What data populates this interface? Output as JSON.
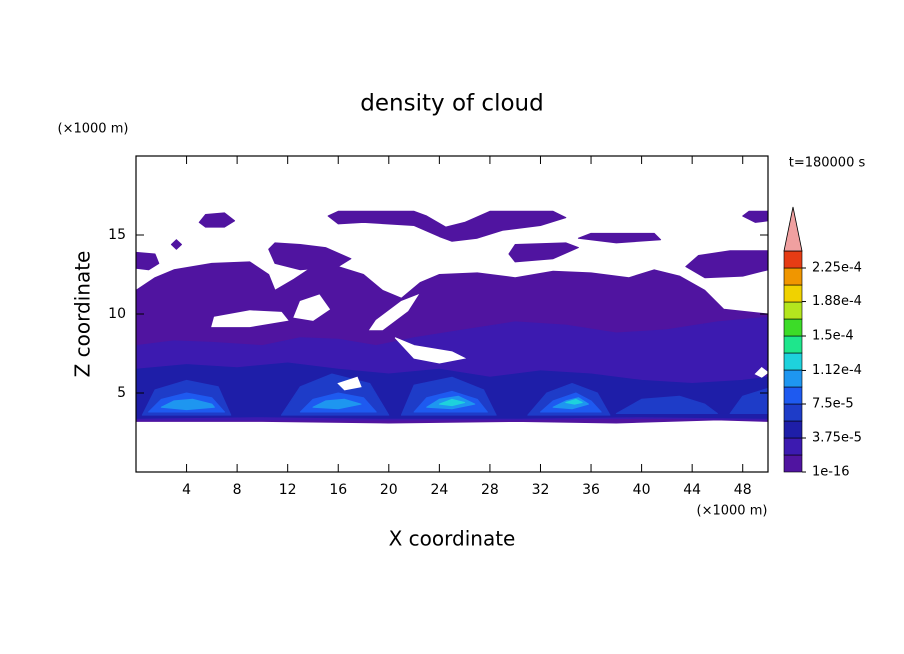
{
  "chart_data": {
    "type": "contour",
    "title": "density of cloud",
    "xlabel": "X coordinate",
    "ylabel": "Z coordinate",
    "x_unit": "(×1000 m)",
    "y_unit": "(×1000 m)",
    "annotation": "t=180000 s",
    "xlim": [
      0,
      50
    ],
    "ylim": [
      0,
      20
    ],
    "xticks": [
      4,
      8,
      12,
      16,
      20,
      24,
      28,
      32,
      36,
      40,
      44,
      48
    ],
    "yticks": [
      5,
      10,
      15
    ],
    "colorbar": {
      "clim": [
        1e-16,
        0.00024375
      ],
      "colors": [
        "#5014a0",
        "#3c1ab0",
        "#1e1ea8",
        "#1e3cc8",
        "#1e5af0",
        "#1e96f0",
        "#1ed2dc",
        "#1ee68c",
        "#3cdc28",
        "#b4e61e",
        "#f0d200",
        "#f09600",
        "#e63c14"
      ],
      "extend_color": "#f0a0a0",
      "ticks": [
        {
          "value": 1e-16,
          "label": "1e-16"
        },
        {
          "value": 3.75e-05,
          "label": "3.75e-5"
        },
        {
          "value": 7.5e-05,
          "label": "7.5e-5"
        },
        {
          "value": 0.000112,
          "label": "1.12e-4"
        },
        {
          "value": 0.00015,
          "label": "1.5e-4"
        },
        {
          "value": 0.000188,
          "label": "1.88e-4"
        },
        {
          "value": 0.000225,
          "label": "2.25e-4"
        }
      ]
    },
    "regions": [
      {
        "level": 1e-16,
        "points": [
          [
            0,
            3.2
          ],
          [
            0,
            11.5
          ],
          [
            1.5,
            12.3
          ],
          [
            3,
            12.8
          ],
          [
            6,
            13.2
          ],
          [
            9,
            13.3
          ],
          [
            10.5,
            12.5
          ],
          [
            11,
            11.5
          ],
          [
            12.5,
            12.2
          ],
          [
            14,
            13
          ],
          [
            16,
            13
          ],
          [
            18,
            12.5
          ],
          [
            19.5,
            11.5
          ],
          [
            21,
            11
          ],
          [
            22.5,
            12
          ],
          [
            24,
            12.5
          ],
          [
            27,
            12.6
          ],
          [
            30,
            12.3
          ],
          [
            33,
            12.7
          ],
          [
            36,
            12.6
          ],
          [
            39,
            12.3
          ],
          [
            41,
            12.8
          ],
          [
            43,
            12.4
          ],
          [
            45,
            11.5
          ],
          [
            46.5,
            10.3
          ],
          [
            50,
            10
          ],
          [
            50,
            3.2
          ],
          [
            46,
            3.3
          ],
          [
            38,
            3.1
          ],
          [
            30,
            3.2
          ],
          [
            20,
            3.1
          ],
          [
            10,
            3.2
          ]
        ]
      },
      {
        "level": 1e-16,
        "points": [
          [
            5,
            15.8
          ],
          [
            5.5,
            16.3
          ],
          [
            7,
            16.4
          ],
          [
            7.8,
            15.9
          ],
          [
            7,
            15.5
          ],
          [
            5.5,
            15.5
          ]
        ]
      },
      {
        "level": 1e-16,
        "points": [
          [
            15.2,
            16.2
          ],
          [
            16,
            16.5
          ],
          [
            22,
            16.5
          ],
          [
            23,
            16.2
          ],
          [
            24.5,
            15.5
          ],
          [
            26,
            15.8
          ],
          [
            28,
            16.5
          ],
          [
            33,
            16.5
          ],
          [
            34,
            16.1
          ],
          [
            32,
            15.6
          ],
          [
            29,
            15.3
          ],
          [
            27,
            14.8
          ],
          [
            25,
            14.6
          ],
          [
            24,
            14.9
          ],
          [
            22,
            15.6
          ],
          [
            18,
            15.8
          ],
          [
            16,
            15.7
          ]
        ]
      },
      {
        "level": 1e-16,
        "points": [
          [
            10.5,
            14.1
          ],
          [
            11,
            14.5
          ],
          [
            13,
            14.4
          ],
          [
            15,
            14.2
          ],
          [
            17,
            13.5
          ],
          [
            16,
            13
          ],
          [
            13,
            12.8
          ],
          [
            11,
            13.2
          ]
        ]
      },
      {
        "level": 1e-16,
        "points": [
          [
            29.5,
            13.8
          ],
          [
            30,
            14.4
          ],
          [
            34,
            14.5
          ],
          [
            35,
            14.2
          ],
          [
            33,
            13.5
          ],
          [
            30,
            13.3
          ]
        ]
      },
      {
        "level": 1e-16,
        "points": [
          [
            35,
            14.8
          ],
          [
            36,
            15.1
          ],
          [
            41,
            15.1
          ],
          [
            41.5,
            14.7
          ],
          [
            38,
            14.5
          ]
        ]
      },
      {
        "level": 1e-16,
        "points": [
          [
            43.5,
            13
          ],
          [
            44.5,
            13.7
          ],
          [
            47,
            14
          ],
          [
            50,
            14
          ],
          [
            50,
            12.8
          ],
          [
            48,
            12.4
          ],
          [
            45,
            12.3
          ]
        ]
      },
      {
        "level": 1e-16,
        "points": [
          [
            48,
            16.2
          ],
          [
            48.5,
            16.5
          ],
          [
            50,
            16.5
          ],
          [
            50,
            15.9
          ],
          [
            49,
            15.8
          ]
        ]
      },
      {
        "level": 1e-16,
        "points": [
          [
            0,
            12.9
          ],
          [
            0,
            13.9
          ],
          [
            1.5,
            13.8
          ],
          [
            1.8,
            13.2
          ],
          [
            1,
            12.8
          ]
        ]
      },
      {
        "level": 1e-16,
        "points": [
          [
            2.8,
            14.4
          ],
          [
            3.2,
            14.7
          ],
          [
            3.6,
            14.4
          ],
          [
            3.2,
            14.1
          ]
        ]
      },
      {
        "level": 2e-05,
        "points": [
          [
            0,
            3.3
          ],
          [
            0,
            8
          ],
          [
            3,
            8.3
          ],
          [
            6,
            8.2
          ],
          [
            10,
            8
          ],
          [
            13,
            8.5
          ],
          [
            16,
            8.4
          ],
          [
            19,
            8
          ],
          [
            22,
            8.5
          ],
          [
            26,
            9
          ],
          [
            30,
            9.5
          ],
          [
            34,
            9.3
          ],
          [
            38,
            8.8
          ],
          [
            42,
            9
          ],
          [
            46,
            9.5
          ],
          [
            50,
            9.8
          ],
          [
            50,
            3.3
          ],
          [
            40,
            3.4
          ],
          [
            30,
            3.3
          ],
          [
            20,
            3.3
          ],
          [
            10,
            3.3
          ]
        ]
      },
      {
        "level": 4e-05,
        "points": [
          [
            0,
            3.4
          ],
          [
            0,
            6.5
          ],
          [
            4,
            6.8
          ],
          [
            8,
            6.6
          ],
          [
            12,
            6.9
          ],
          [
            16,
            6.5
          ],
          [
            20,
            6.2
          ],
          [
            24,
            6.5
          ],
          [
            28,
            6
          ],
          [
            32,
            6.4
          ],
          [
            36,
            6.2
          ],
          [
            40,
            5.8
          ],
          [
            44,
            5.6
          ],
          [
            48,
            5.8
          ],
          [
            50,
            6
          ],
          [
            50,
            3.4
          ],
          [
            40,
            3.5
          ],
          [
            30,
            3.4
          ],
          [
            20,
            3.4
          ],
          [
            10,
            3.5
          ]
        ]
      },
      {
        "level": 6e-05,
        "points": [
          [
            0.5,
            3.6
          ],
          [
            1.5,
            5.2
          ],
          [
            4,
            5.8
          ],
          [
            6.5,
            5.4
          ],
          [
            7.5,
            3.6
          ]
        ]
      },
      {
        "level": 6e-05,
        "points": [
          [
            11.5,
            3.6
          ],
          [
            13,
            5.4
          ],
          [
            15.5,
            6.2
          ],
          [
            18.5,
            5.6
          ],
          [
            20,
            3.6
          ]
        ]
      },
      {
        "level": 6e-05,
        "points": [
          [
            21,
            3.6
          ],
          [
            22,
            5.5
          ],
          [
            25,
            6
          ],
          [
            27.5,
            5.2
          ],
          [
            28.5,
            3.6
          ]
        ]
      },
      {
        "level": 6e-05,
        "points": [
          [
            31,
            3.6
          ],
          [
            32.5,
            5
          ],
          [
            34.5,
            5.6
          ],
          [
            36.5,
            5
          ],
          [
            37.5,
            3.6
          ]
        ]
      },
      {
        "level": 6e-05,
        "points": [
          [
            38,
            3.7
          ],
          [
            40,
            4.6
          ],
          [
            43,
            4.8
          ],
          [
            45,
            4.3
          ],
          [
            46,
            3.7
          ]
        ]
      },
      {
        "level": 6e-05,
        "points": [
          [
            47,
            3.7
          ],
          [
            48,
            4.8
          ],
          [
            50,
            5.3
          ],
          [
            50,
            3.7
          ]
        ]
      },
      {
        "level": 8e-05,
        "points": [
          [
            1,
            3.8
          ],
          [
            2,
            4.6
          ],
          [
            4,
            5
          ],
          [
            6,
            4.7
          ],
          [
            7,
            3.8
          ]
        ]
      },
      {
        "level": 8e-05,
        "points": [
          [
            13,
            3.8
          ],
          [
            14,
            4.6
          ],
          [
            16,
            5
          ],
          [
            18,
            4.7
          ],
          [
            19,
            3.8
          ]
        ]
      },
      {
        "level": 8e-05,
        "points": [
          [
            22,
            3.8
          ],
          [
            23,
            4.7
          ],
          [
            25,
            5.1
          ],
          [
            27,
            4.6
          ],
          [
            27.8,
            3.8
          ]
        ]
      },
      {
        "level": 8e-05,
        "points": [
          [
            32,
            3.8
          ],
          [
            33,
            4.5
          ],
          [
            34.8,
            5
          ],
          [
            36,
            4.5
          ],
          [
            36.8,
            3.8
          ]
        ]
      },
      {
        "level": 0.0001,
        "points": [
          [
            2,
            4.1
          ],
          [
            3,
            4.5
          ],
          [
            4.5,
            4.6
          ],
          [
            6,
            4.3
          ],
          [
            6.2,
            4.1
          ],
          [
            4,
            3.95
          ]
        ]
      },
      {
        "level": 0.0001,
        "points": [
          [
            14,
            4.1
          ],
          [
            15,
            4.5
          ],
          [
            16.5,
            4.6
          ],
          [
            17.8,
            4.3
          ],
          [
            16,
            4
          ]
        ]
      },
      {
        "level": 0.0001,
        "points": [
          [
            23,
            4.1
          ],
          [
            24,
            4.6
          ],
          [
            25.5,
            4.8
          ],
          [
            26.8,
            4.3
          ],
          [
            25,
            4
          ]
        ]
      },
      {
        "level": 0.0001,
        "points": [
          [
            33,
            4.1
          ],
          [
            34,
            4.5
          ],
          [
            35,
            4.7
          ],
          [
            35.8,
            4.3
          ],
          [
            34.5,
            4
          ]
        ]
      },
      {
        "level": 0.00012,
        "points": [
          [
            24,
            4.3
          ],
          [
            25,
            4.6
          ],
          [
            26,
            4.4
          ],
          [
            25,
            4.2
          ]
        ]
      },
      {
        "level": 0.00012,
        "points": [
          [
            34,
            4.4
          ],
          [
            34.8,
            4.6
          ],
          [
            35.3,
            4.4
          ],
          [
            34.7,
            4.3
          ]
        ]
      }
    ],
    "holes": [
      [
        [
          6,
          9.2
        ],
        [
          6.2,
          9.8
        ],
        [
          9,
          10.2
        ],
        [
          11.5,
          10.1
        ],
        [
          12,
          9.6
        ],
        [
          9,
          9.2
        ]
      ],
      [
        [
          12.5,
          9.8
        ],
        [
          13,
          10.8
        ],
        [
          14.5,
          11.2
        ],
        [
          15.3,
          10.3
        ],
        [
          14,
          9.6
        ]
      ],
      [
        [
          18.5,
          9
        ],
        [
          19,
          9.6
        ],
        [
          21,
          10.8
        ],
        [
          22.3,
          11.2
        ],
        [
          21.5,
          10.2
        ],
        [
          19.5,
          9
        ]
      ],
      [
        [
          20.5,
          8.5
        ],
        [
          22,
          8
        ],
        [
          25,
          7.6
        ],
        [
          26,
          7.2
        ],
        [
          24,
          6.9
        ],
        [
          22,
          7.2
        ]
      ],
      [
        [
          16,
          5.6
        ],
        [
          17.5,
          6
        ],
        [
          17.8,
          5.4
        ],
        [
          16.5,
          5.2
        ]
      ],
      [
        [
          49,
          6.2
        ],
        [
          49.5,
          6.6
        ],
        [
          50,
          6.3
        ],
        [
          49.5,
          6
        ]
      ]
    ]
  }
}
